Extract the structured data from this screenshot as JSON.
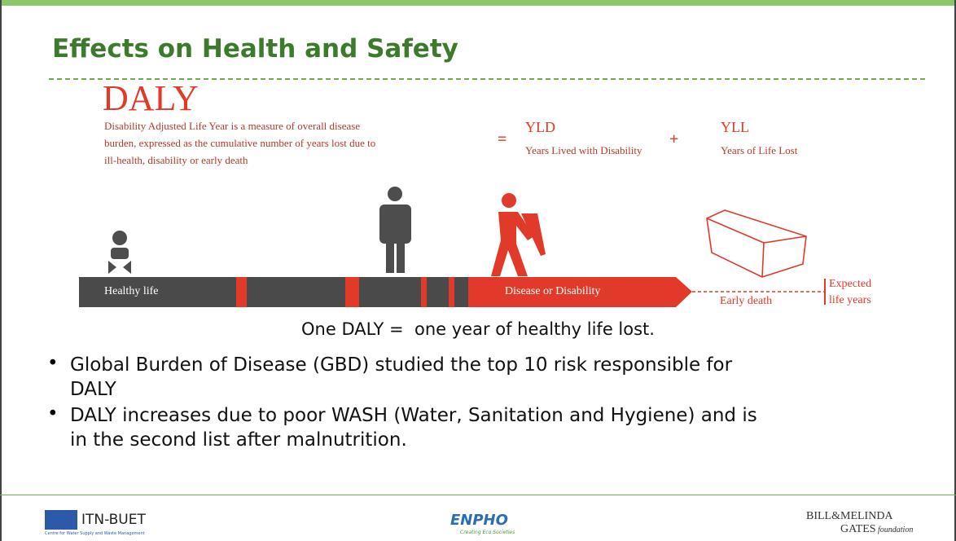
{
  "slide": {
    "title": "Effects on Health and Safety",
    "daly": {
      "heading": "DALY",
      "definition": [
        "Disability Adjusted Life Year is a measure of overall disease",
        "burden, expressed as the cumulative number of years lost due to",
        "ill-health, disability or early death"
      ],
      "equals": "=",
      "yld": {
        "abbr": "YLD",
        "full": "Years Lived with Disability"
      },
      "plus": "+",
      "yll": {
        "abbr": "YLL",
        "full": "Years of Life Lost"
      }
    },
    "timeline": {
      "healthy": "Healthy life",
      "disease": "Disease or Disability",
      "early_death": "Early death",
      "expected": [
        "Expected",
        "life years"
      ]
    },
    "caption": "One DALY =  one year of healthy life lost.",
    "bullets": [
      [
        "Global Burden of Disease (GBD) studied the top 10 risk responsible for",
        "DALY"
      ],
      [
        "DALY increases due to poor WASH (Water, Sanitation and Hygiene) and is",
        "in the second list after malnutrition."
      ]
    ],
    "footer": {
      "left": {
        "name": "ITN-BUET",
        "tagline": "Centre for Water Supply and Waste Management"
      },
      "center": {
        "name": "ENPHO",
        "tagline": "Creating Eco Societies"
      },
      "right": {
        "line1": "BILL&MELINDA",
        "line2": "GATES",
        "line3": "foundation"
      }
    }
  }
}
